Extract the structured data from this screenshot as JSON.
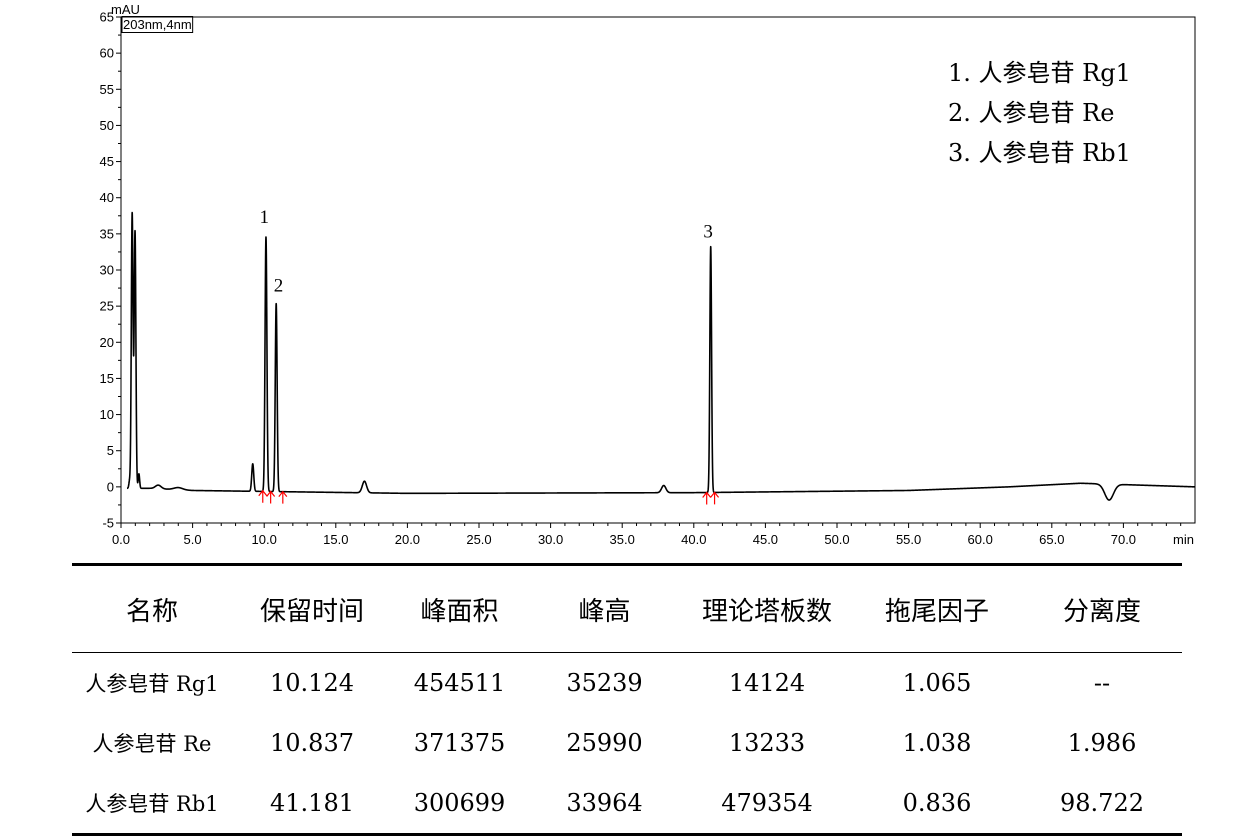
{
  "chart_data": {
    "type": "line",
    "ylabel": "mAU",
    "xlabel": "min",
    "channel_label": "203nm,4nm",
    "xlim": [
      0,
      75
    ],
    "ylim": [
      -5,
      65
    ],
    "x_ticks": [
      "0.0",
      "5.0",
      "10.0",
      "15.0",
      "20.0",
      "25.0",
      "30.0",
      "35.0",
      "40.0",
      "45.0",
      "50.0",
      "55.0",
      "60.0",
      "65.0",
      "70.0"
    ],
    "y_ticks": [
      "-5",
      "0",
      "5",
      "10",
      "15",
      "20",
      "25",
      "30",
      "35",
      "40",
      "45",
      "50",
      "55",
      "60",
      "65"
    ],
    "baseline": [
      [
        0,
        -0.2
      ],
      [
        2.0,
        -0.2
      ],
      [
        5.0,
        -0.5
      ],
      [
        20.0,
        -0.9
      ],
      [
        40.0,
        -0.8
      ],
      [
        55.0,
        -0.5
      ],
      [
        62.0,
        0.0
      ],
      [
        67.0,
        0.5
      ],
      [
        75.0,
        0.0
      ]
    ],
    "peaks": [
      {
        "rt": 0.6,
        "height": 1.0,
        "width": 0.05
      },
      {
        "rt": 0.78,
        "height": 38.0,
        "width": 0.06
      },
      {
        "rt": 0.98,
        "height": 35.5,
        "width": 0.06
      },
      {
        "rt": 1.25,
        "height": 2.0,
        "width": 0.05
      },
      {
        "rt": 2.6,
        "height": 0.5,
        "width": 0.2
      },
      {
        "rt": 4.0,
        "height": 0.3,
        "width": 0.3
      },
      {
        "rt": 9.2,
        "height": 3.8,
        "width": 0.07
      },
      {
        "rt": 10.124,
        "height": 35.2,
        "width": 0.065
      },
      {
        "rt": 10.837,
        "height": 26.0,
        "width": 0.065
      },
      {
        "rt": 17.0,
        "height": 1.6,
        "width": 0.15
      },
      {
        "rt": 37.9,
        "height": 1.0,
        "width": 0.15
      },
      {
        "rt": 41.181,
        "height": 34.0,
        "width": 0.06
      },
      {
        "rt": 69.0,
        "height": -2.2,
        "width": 0.3
      }
    ],
    "peak_labels": [
      {
        "text": "1",
        "x": 10.0,
        "y": 36.5
      },
      {
        "text": "2",
        "x": 11.0,
        "y": 27.0
      },
      {
        "text": "3",
        "x": 41.0,
        "y": 34.5
      }
    ],
    "integration_marks": [
      9.9,
      10.45,
      11.3,
      40.9,
      41.45
    ],
    "legend": [
      "1.  人参皂苷 Rg1",
      "2.  人参皂苷 Re",
      "3.  人参皂苷 Rb1"
    ],
    "colors": {
      "trace": "#000000",
      "marker": "#ff0000"
    }
  },
  "table": {
    "headers": [
      "名称",
      "保留时间",
      "峰面积",
      "峰高",
      "理论塔板数",
      "拖尾因子",
      "分离度"
    ],
    "rows": [
      [
        "人参皂苷 Rg1",
        "10.124",
        "454511",
        "35239",
        "14124",
        "1.065",
        "--"
      ],
      [
        "人参皂苷 Re",
        "10.837",
        "371375",
        "25990",
        "13233",
        "1.038",
        "1.986"
      ],
      [
        "人参皂苷 Rb1",
        "41.181",
        "300699",
        "33964",
        "479354",
        "0.836",
        "98.722"
      ]
    ]
  }
}
